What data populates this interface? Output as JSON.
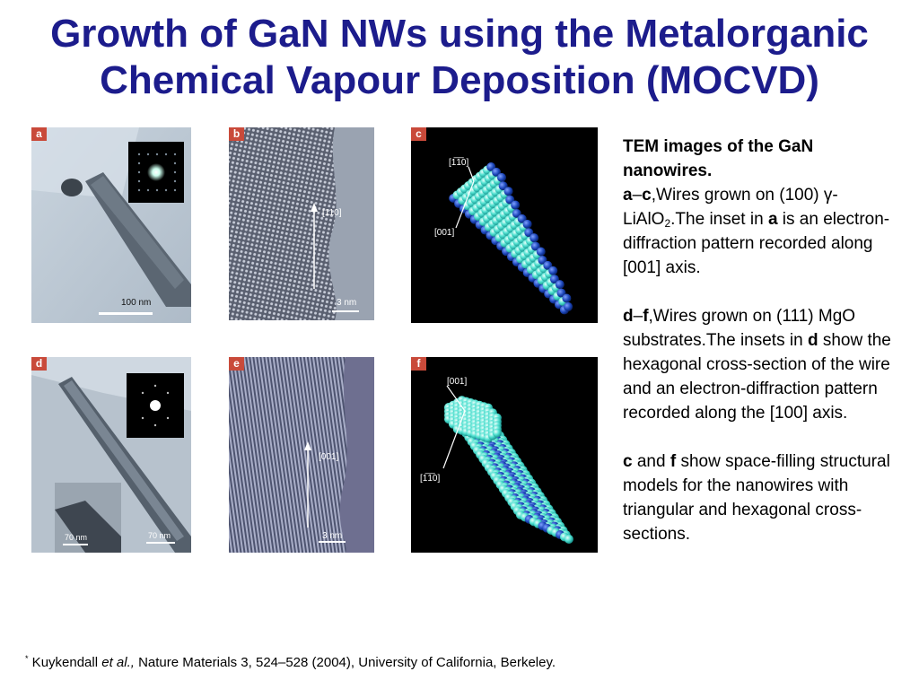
{
  "slide": {
    "title_line1": "Growth of GaN NWs using the Metalorganic",
    "title_line2": "Chemical Vapour Deposition (MOCVD)"
  },
  "figure": {
    "panels": [
      {
        "id": "a",
        "label": "a",
        "scale_bar": "100 nm"
      },
      {
        "id": "b",
        "label": "b",
        "direction": "[110]",
        "scale_bar": "3 nm"
      },
      {
        "id": "c",
        "label": "c",
        "direction_top": "[1̅1̅0]",
        "direction_side": "[001]"
      },
      {
        "id": "d",
        "label": "d",
        "scale_bar": "70 nm",
        "inset_scale_bar": "70 nm"
      },
      {
        "id": "e",
        "label": "e",
        "direction": "[001]",
        "scale_bar": "3 nm"
      },
      {
        "id": "f",
        "label": "f",
        "direction_top": "[001]",
        "direction_side": "[1̅1̅0]"
      }
    ]
  },
  "caption": {
    "heading_line1": "TEM images of the GaN",
    "heading_line2": "nanowires.",
    "ac_range_start": "a",
    "ac_range_dash": "–",
    "ac_range_end": "c",
    "ac_text1": ",Wires grown on (100) γ-LiAlO",
    "ac_sub": "2",
    "ac_text2": ".The inset in ",
    "ac_bold": "a",
    "ac_text3": " is an electron-diffraction pattern recorded along [001] axis.",
    "df_range_start": "d",
    "df_range_dash": "–",
    "df_range_end": "f",
    "df_text1": ",Wires grown on (111) MgO substrates.The insets in ",
    "df_bold": "d",
    "df_text2": " show the hexagonal cross-section of the wire and an electron-diffraction pattern recorded along the [100] axis.",
    "cf_bold1": "c",
    "cf_and": " and ",
    "cf_bold2": "f",
    "cf_text": " show space-filling structural models for the nanowires with triangular and hexagonal cross-sections."
  },
  "footnote": {
    "marker": "*",
    "author": " Kuykendall ",
    "etal": "et al.,",
    "citation": " Nature Materials 3, 524–528 (2004), University of California, Berkeley."
  },
  "colors": {
    "title": "#1c1c8c",
    "panel_label_bg": "#c94a3a",
    "model_bg": "#000000",
    "sphere_cyan": "#4fe0d0",
    "sphere_blue": "#1a44b8"
  }
}
